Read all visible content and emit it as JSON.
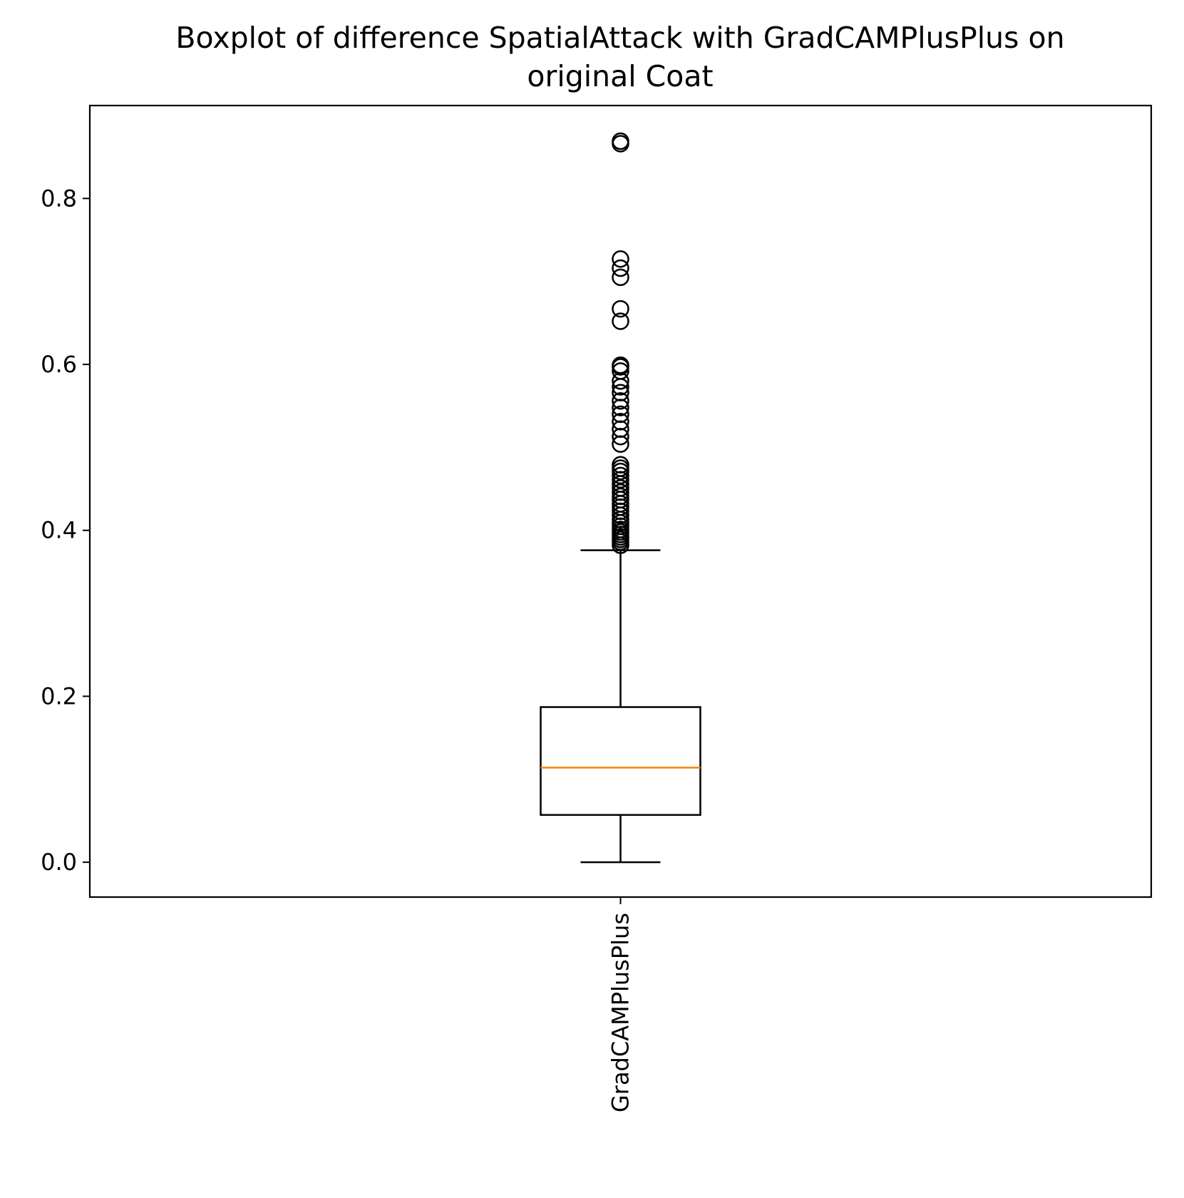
{
  "chart_data": {
    "type": "boxplot",
    "title_lines": [
      "Boxplot of difference SpatialAttack with GradCAMPlusPlus on",
      "original Coat"
    ],
    "xlabel": "",
    "ylabel": "",
    "categories": [
      "GradCAMPlusPlus"
    ],
    "ylim": [
      -0.042,
      0.912
    ],
    "yticks": [
      0.0,
      0.2,
      0.4,
      0.6,
      0.8
    ],
    "ytick_labels": [
      "0.0",
      "0.2",
      "0.4",
      "0.6",
      "0.8"
    ],
    "grid": false,
    "colors": {
      "box": "#000000",
      "median": "#ff7f0e",
      "flier": "#000000"
    },
    "boxes": [
      {
        "name": "GradCAMPlusPlus",
        "whisker_low": 0.0,
        "q1": 0.057,
        "median": 0.114,
        "q3": 0.187,
        "whisker_high": 0.376,
        "fliers": [
          0.382,
          0.386,
          0.389,
          0.392,
          0.395,
          0.398,
          0.401,
          0.405,
          0.409,
          0.413,
          0.418,
          0.423,
          0.428,
          0.432,
          0.437,
          0.441,
          0.446,
          0.451,
          0.456,
          0.461,
          0.466,
          0.471,
          0.475,
          0.479,
          0.504,
          0.513,
          0.522,
          0.531,
          0.54,
          0.548,
          0.556,
          0.566,
          0.573,
          0.58,
          0.592,
          0.597,
          0.599,
          0.652,
          0.667,
          0.705,
          0.716,
          0.727,
          0.866,
          0.869
        ]
      }
    ]
  }
}
